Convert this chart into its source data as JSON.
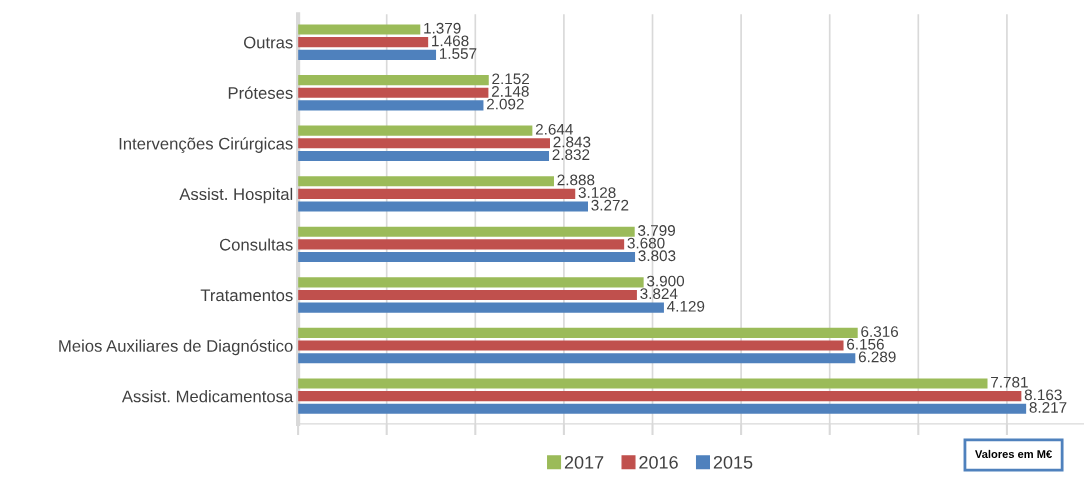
{
  "chart_data": {
    "type": "bar",
    "orientation": "horizontal",
    "categories": [
      "Outras",
      "Próteses",
      "Intervenções Cirúrgicas",
      "Assist. Hospital",
      "Consultas",
      "Tratamentos",
      "Meios Auxiliares de Diagnóstico",
      "Assist. Medicamentosa"
    ],
    "series": [
      {
        "name": "2017",
        "color": "#9bbb59",
        "values": [
          1.379,
          2.152,
          2.644,
          2.888,
          3.799,
          3.9,
          6.316,
          7.781
        ],
        "value_labels": [
          "1.379",
          "2.152",
          "2.644",
          "2.888",
          "3.799",
          "3.900",
          "6.316",
          "7.781"
        ]
      },
      {
        "name": "2016",
        "color": "#c0504d",
        "values": [
          1.468,
          2.148,
          2.843,
          3.128,
          3.68,
          3.824,
          6.156,
          8.163
        ],
        "value_labels": [
          "1.468",
          "2.148",
          "2.843",
          "3.128",
          "3.680",
          "3.824",
          "6.156",
          "8.163"
        ]
      },
      {
        "name": "2015",
        "color": "#4f81bd",
        "values": [
          1.557,
          2.092,
          2.832,
          3.272,
          3.803,
          4.129,
          6.289,
          8.217
        ],
        "value_labels": [
          "1.557",
          "2.092",
          "2.832",
          "3.272",
          "3.803",
          "4.129",
          "6.289",
          "8.217"
        ]
      }
    ],
    "xlim": [
      0,
      8.87
    ],
    "xticks": [
      {
        "value": 0,
        "label": null
      },
      {
        "value": 1,
        "label": null
      },
      {
        "value": 2,
        "label": null
      },
      {
        "value": 3,
        "label": null
      },
      {
        "value": 4,
        "label": null
      },
      {
        "value": 5,
        "label": null
      },
      {
        "value": 6,
        "label": null
      },
      {
        "value": 7,
        "label": null
      },
      {
        "value": 8,
        "label": null
      }
    ],
    "tick_labels": "y",
    "grid": "x",
    "legend": "bottom",
    "annotations": [
      "Valores em M€"
    ]
  }
}
